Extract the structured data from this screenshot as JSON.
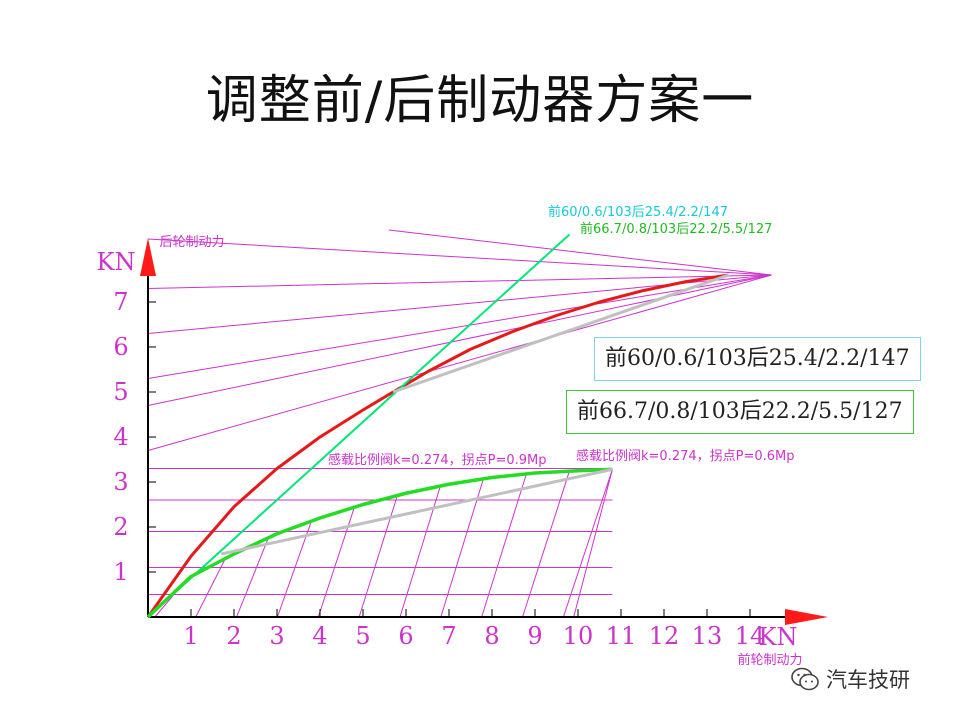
{
  "title": "调整前/后制动器方案一",
  "watermark": {
    "icon": "wechat-icon",
    "text": "汽车技研"
  },
  "chart_data": {
    "type": "line",
    "xlabel": "前轮制动力",
    "ylabel": "后轮制动力",
    "x_unit": "KN",
    "y_unit": "KN",
    "x_ticks": [
      "1",
      "2",
      "3",
      "4",
      "5",
      "6",
      "7",
      "8",
      "9",
      "10",
      "11",
      "12",
      "13",
      "14"
    ],
    "y_ticks": [
      "1",
      "2",
      "3",
      "4",
      "5",
      "6",
      "7"
    ],
    "xlim": [
      0,
      15
    ],
    "ylim": [
      0,
      8
    ],
    "series": [
      {
        "name": "前60/0.6/103后25.4/2.2/147",
        "color": "#e61919",
        "x": [
          0,
          1,
          2,
          3,
          4,
          5,
          5.7,
          6.5,
          7.5,
          8.5,
          9.5,
          10.5,
          11.5,
          12.5,
          13.5
        ],
        "y": [
          0,
          1.35,
          2.45,
          3.3,
          4.0,
          4.6,
          5.0,
          5.45,
          5.95,
          6.35,
          6.7,
          7.0,
          7.25,
          7.45,
          7.6
        ]
      },
      {
        "name": "前60/0.6/103后25.4/2.2/147",
        "color": "#00e676",
        "x": [
          0,
          9.8
        ],
        "y": [
          0,
          8.5
        ]
      },
      {
        "name": "前66.7/0.8/103后22.2/5.5/127",
        "color": "#22dd22",
        "x": [
          0,
          1,
          2,
          3,
          4,
          5,
          6,
          7,
          8,
          9,
          10,
          10.8
        ],
        "y": [
          0,
          0.9,
          1.4,
          1.85,
          2.2,
          2.5,
          2.75,
          2.95,
          3.1,
          3.2,
          3.25,
          3.28
        ]
      },
      {
        "name": "感载比例阀k=0.274，拐点P=0.9Mp",
        "color": "#c0c0c0",
        "x": [
          5.7,
          13.5
        ],
        "y": [
          5.0,
          7.6
        ]
      },
      {
        "name": "感载比例阀k=0.274，拐点P=0.6Mp",
        "color": "#c0c0c0",
        "x": [
          1.7,
          10.8
        ],
        "y": [
          1.4,
          3.28
        ]
      }
    ],
    "annotations": [
      {
        "text": "前60/0.6/103后25.4/2.2/147",
        "color": "#16c9d9"
      },
      {
        "text": "前66.7/0.8/103后22.2/5.5/127",
        "color": "#22bb22"
      },
      {
        "text": "感载比例阀k=0.274，拐点P=0.9Mp",
        "color": "#cc33cc"
      },
      {
        "text": "感载比例阀k=0.274，拐点P=0.6Mp",
        "color": "#cc33cc"
      }
    ],
    "legend_boxes": [
      {
        "text": "前60/0.6/103后25.4/2.2/147",
        "border": "#7fd3e8"
      },
      {
        "text": "前66.7/0.8/103后22.2/5.5/127",
        "border": "#33cc33"
      }
    ],
    "grid": false
  }
}
